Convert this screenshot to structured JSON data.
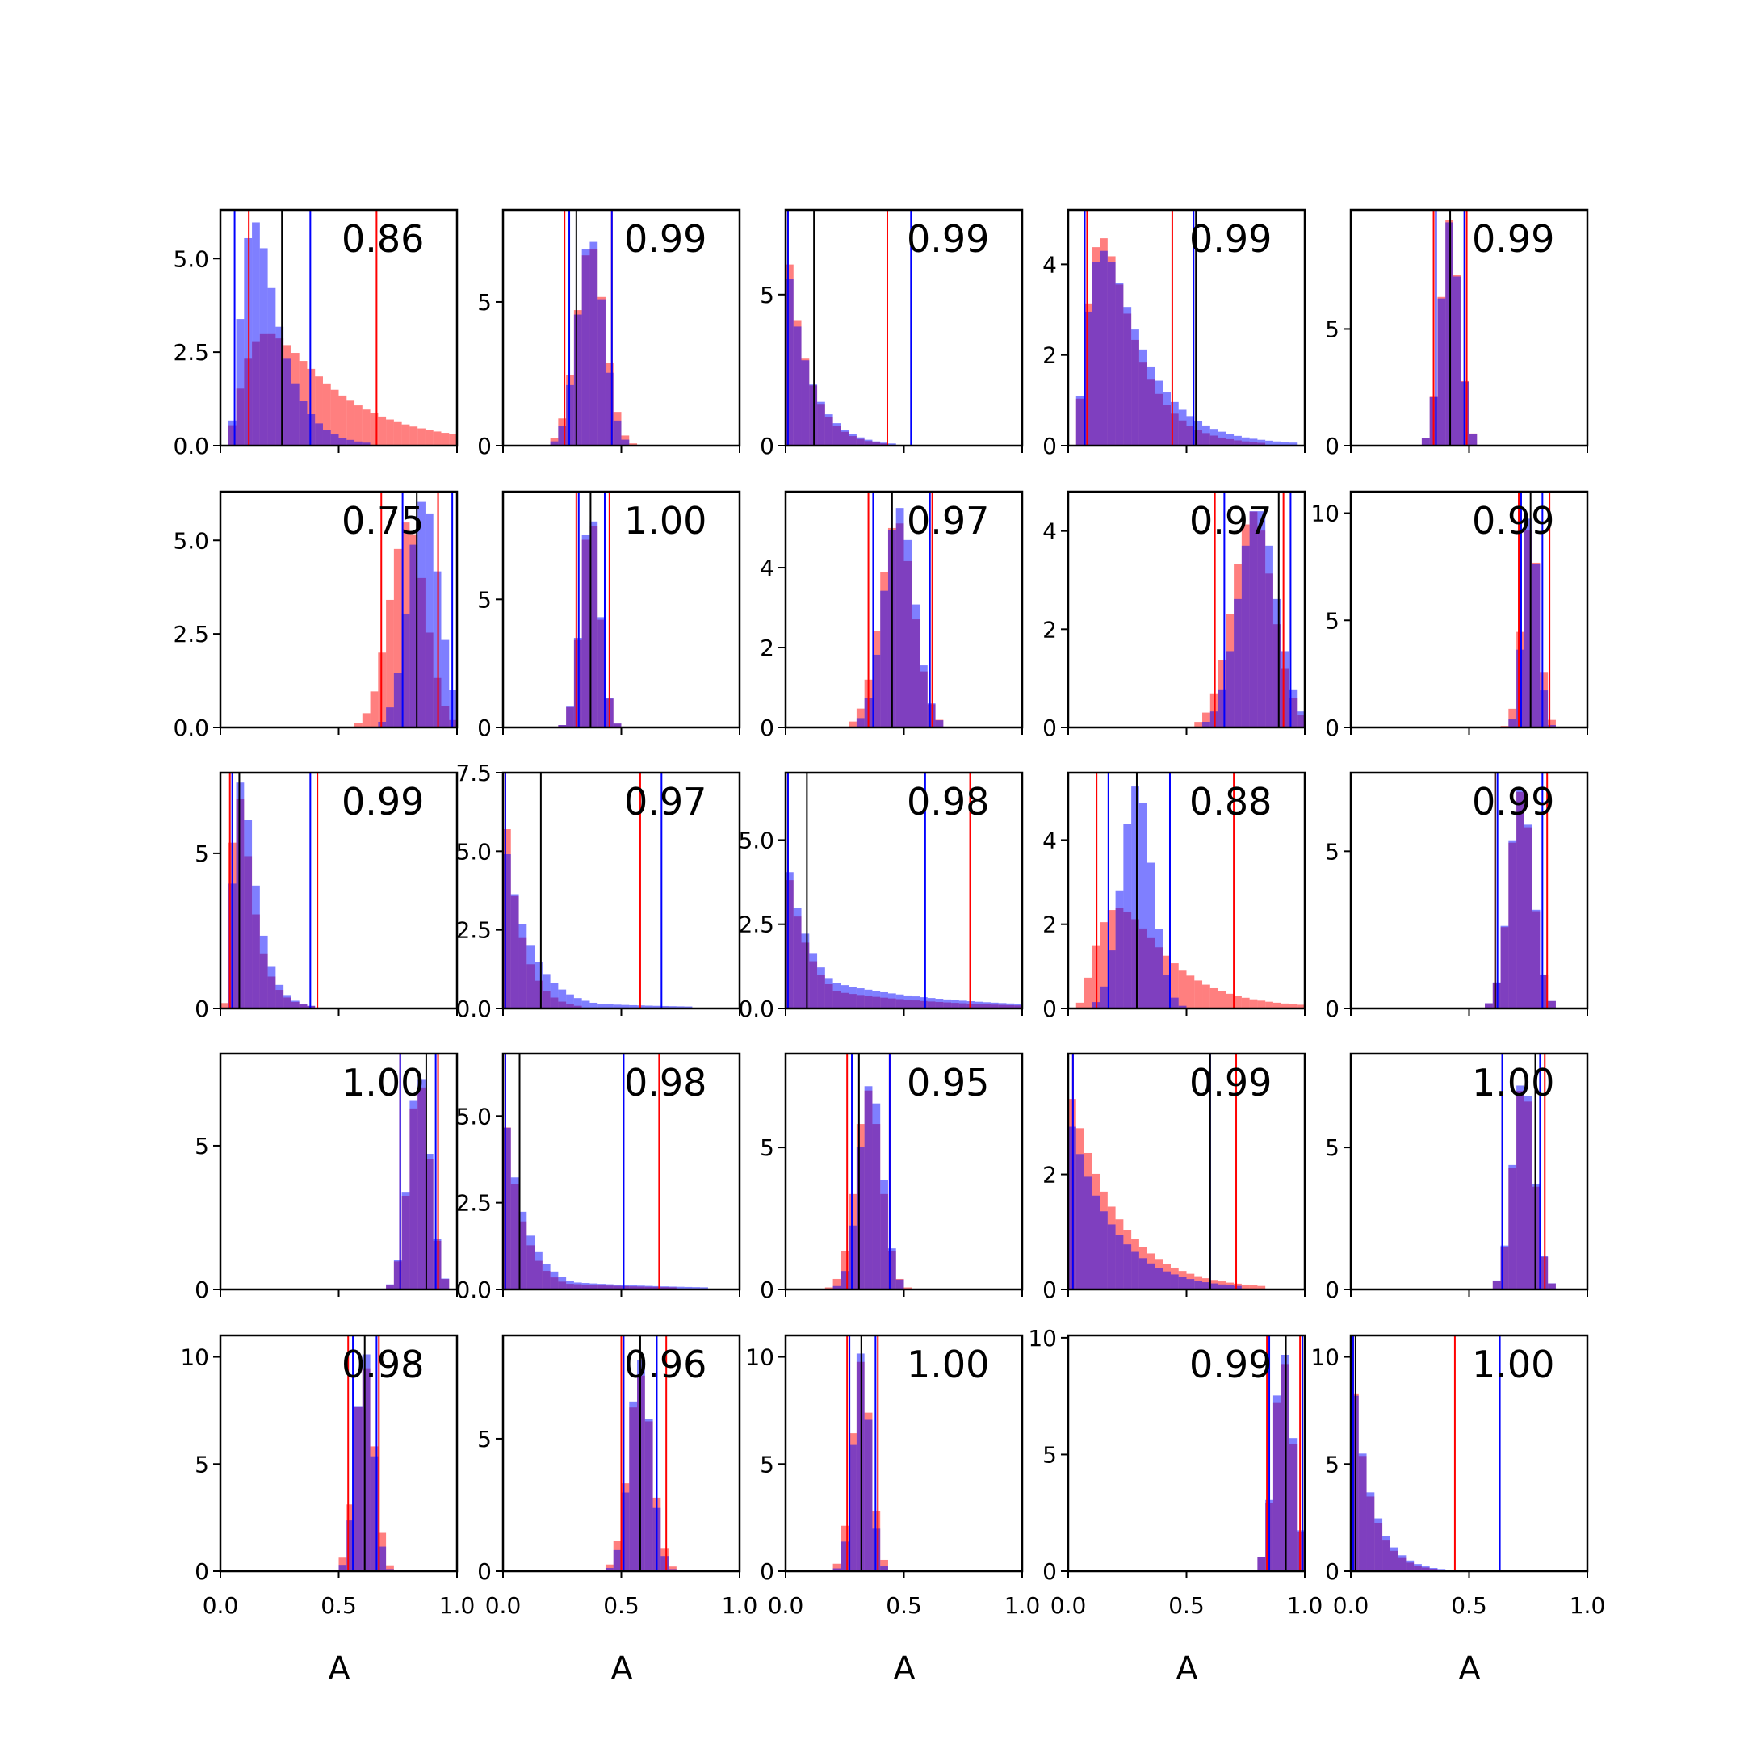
{
  "colors": {
    "red": "#ff0000",
    "blue": "#0000ff",
    "black": "#000000"
  },
  "figure": {
    "xlabel": "A",
    "x_ticks": [
      "0.0",
      "0.5",
      "1.0"
    ]
  },
  "chart_data": [
    {
      "type": "bar",
      "corr": "0.86",
      "ylim": [
        0,
        6.3
      ],
      "yticks": [
        0,
        2.5,
        5
      ],
      "ytick_labels": [
        "0.0",
        "2.5",
        "5.0"
      ],
      "red": {
        "lines": [
          0.12,
          0.66
        ],
        "dist": {
          "kind": "lognormal",
          "loc": 0,
          "mu": -1.05,
          "sigma": 0.75,
          "scale": 3.0
        }
      },
      "blue": {
        "lines": [
          0.06,
          0.38
        ],
        "dist": {
          "kind": "lognormal",
          "loc": 0,
          "mu": -1.7,
          "sigma": 0.5,
          "scale": 6.0
        }
      },
      "median": 0.26
    },
    {
      "type": "bar",
      "corr": "0.99",
      "ylim": [
        0,
        8.2
      ],
      "yticks": [
        0,
        5
      ],
      "ytick_labels": [
        "0",
        "5"
      ],
      "red": {
        "lines": [
          0.26,
          0.46
        ],
        "dist": {
          "kind": "normal",
          "mu": 0.37,
          "sd": 0.06,
          "scale": 7.0
        }
      },
      "blue": {
        "lines": [
          0.28,
          0.46
        ],
        "dist": {
          "kind": "normal",
          "mu": 0.37,
          "sd": 0.055,
          "scale": 7.3
        }
      },
      "median": 0.31
    },
    {
      "type": "bar",
      "corr": "0.99",
      "ylim": [
        0,
        7.8
      ],
      "yticks": [
        0,
        5
      ],
      "ytick_labels": [
        "0",
        "5"
      ],
      "red": {
        "lines": [
          0.01,
          0.43
        ],
        "dist": {
          "kind": "exp",
          "rate": 11,
          "scale": 7.2,
          "floor": 0.08
        }
      },
      "blue": {
        "lines": [
          0.01,
          0.53
        ],
        "dist": {
          "kind": "exp",
          "rate": 10,
          "scale": 6.5,
          "floor": 0.1
        }
      },
      "median": 0.12
    },
    {
      "type": "bar",
      "corr": "0.99",
      "ylim": [
        0,
        5.2
      ],
      "yticks": [
        0,
        2,
        4
      ],
      "ytick_labels": [
        "0",
        "2",
        "4"
      ],
      "red": {
        "lines": [
          0.08,
          0.44
        ],
        "dist": {
          "kind": "lognormal",
          "loc": 0,
          "mu": -1.6,
          "sigma": 0.6,
          "scale": 4.6
        }
      },
      "blue": {
        "lines": [
          0.07,
          0.53
        ],
        "dist": {
          "kind": "lognormal",
          "loc": 0,
          "mu": -1.5,
          "sigma": 0.65,
          "scale": 4.3
        }
      },
      "median": 0.54
    },
    {
      "type": "bar",
      "corr": "0.99",
      "ylim": [
        0,
        10.1
      ],
      "yticks": [
        0,
        5
      ],
      "ytick_labels": [
        "0",
        "5"
      ],
      "red": {
        "lines": [
          0.35,
          0.49
        ],
        "dist": {
          "kind": "normal",
          "mu": 0.42,
          "sd": 0.04,
          "scale": 9.7
        }
      },
      "blue": {
        "lines": [
          0.36,
          0.48
        ],
        "dist": {
          "kind": "normal",
          "mu": 0.42,
          "sd": 0.04,
          "scale": 9.6
        }
      },
      "median": 0.42
    },
    {
      "type": "bar",
      "corr": "0.75",
      "ylim": [
        0,
        6.3
      ],
      "yticks": [
        0,
        2.5,
        5
      ],
      "ytick_labels": [
        "0.0",
        "2.5",
        "5.0"
      ],
      "red": {
        "lines": [
          0.68,
          0.92
        ],
        "dist": {
          "kind": "normal",
          "mu": 0.79,
          "sd": 0.075,
          "scale": 5.5
        }
      },
      "blue": {
        "lines": [
          0.77,
          0.98
        ],
        "dist": {
          "kind": "normal",
          "mu": 0.86,
          "sd": 0.065,
          "scale": 6.1
        }
      },
      "median": 0.83
    },
    {
      "type": "bar",
      "corr": "1.00",
      "ylim": [
        0,
        9.2
      ],
      "yticks": [
        0,
        5
      ],
      "ytick_labels": [
        "0",
        "5"
      ],
      "red": {
        "lines": [
          0.31,
          0.45
        ],
        "dist": {
          "kind": "normal",
          "mu": 0.37,
          "sd": 0.04,
          "scale": 8.3
        }
      },
      "blue": {
        "lines": [
          0.32,
          0.43
        ],
        "dist": {
          "kind": "normal",
          "mu": 0.37,
          "sd": 0.04,
          "scale": 8.5
        }
      },
      "median": 0.37
    },
    {
      "type": "bar",
      "corr": "0.97",
      "ylim": [
        0,
        5.9
      ],
      "yticks": [
        0,
        2,
        4
      ],
      "ytick_labels": [
        "0",
        "2",
        "4"
      ],
      "red": {
        "lines": [
          0.35,
          0.62
        ],
        "dist": {
          "kind": "normal",
          "mu": 0.47,
          "sd": 0.07,
          "scale": 5.2
        }
      },
      "blue": {
        "lines": [
          0.37,
          0.61
        ],
        "dist": {
          "kind": "normal",
          "mu": 0.48,
          "sd": 0.065,
          "scale": 5.5
        }
      },
      "median": 0.45
    },
    {
      "type": "bar",
      "corr": "0.97",
      "ylim": [
        0,
        4.8
      ],
      "yticks": [
        0,
        2,
        4
      ],
      "ytick_labels": [
        "0",
        "2",
        "4"
      ],
      "red": {
        "lines": [
          0.62,
          0.91
        ],
        "dist": {
          "kind": "normal",
          "mu": 0.78,
          "sd": 0.085,
          "scale": 4.4
        }
      },
      "blue": {
        "lines": [
          0.66,
          0.94
        ],
        "dist": {
          "kind": "normal",
          "mu": 0.8,
          "sd": 0.08,
          "scale": 4.5
        }
      },
      "median": 0.89
    },
    {
      "type": "bar",
      "corr": "0.99",
      "ylim": [
        0,
        11
      ],
      "yticks": [
        0,
        5,
        10
      ],
      "ytick_labels": [
        "0",
        "5",
        "10"
      ],
      "red": {
        "lines": [
          0.71,
          0.84
        ],
        "dist": {
          "kind": "normal",
          "mu": 0.76,
          "sd": 0.035,
          "scale": 9.6
        }
      },
      "blue": {
        "lines": [
          0.72,
          0.81
        ],
        "dist": {
          "kind": "normal",
          "mu": 0.76,
          "sd": 0.03,
          "scale": 10.3
        }
      },
      "median": 0.76
    },
    {
      "type": "bar",
      "corr": "0.99",
      "ylim": [
        0,
        7.6
      ],
      "yticks": [
        0,
        5
      ],
      "ytick_labels": [
        "0",
        "5"
      ],
      "red": {
        "lines": [
          0.04,
          0.41
        ],
        "dist": {
          "kind": "lognormal",
          "loc": 0,
          "mu": -2.3,
          "sigma": 0.55,
          "scale": 6.9
        }
      },
      "blue": {
        "lines": [
          0.05,
          0.38
        ],
        "dist": {
          "kind": "lognormal",
          "loc": 0,
          "mu": -2.2,
          "sigma": 0.5,
          "scale": 7.3
        }
      },
      "median": 0.08
    },
    {
      "type": "bar",
      "corr": "0.97",
      "ylim": [
        0,
        7.5
      ],
      "yticks": [
        0,
        2.5,
        5,
        7.5
      ],
      "ytick_labels": [
        "0.0",
        "2.5",
        "5.0",
        "7.5"
      ],
      "red": {
        "lines": [
          0.01,
          0.58
        ],
        "dist": {
          "kind": "exp",
          "rate": 14,
          "scale": 7.2,
          "floor": 0.12
        }
      },
      "blue": {
        "lines": [
          0.01,
          0.67
        ],
        "dist": {
          "kind": "exp",
          "rate": 9,
          "scale": 5.7,
          "floor": 0.35
        }
      },
      "median": 0.16
    },
    {
      "type": "bar",
      "corr": "0.98",
      "ylim": [
        0,
        7
      ],
      "yticks": [
        0,
        2.5,
        5
      ],
      "ytick_labels": [
        "0.0",
        "2.5",
        "5.0"
      ],
      "red": {
        "lines": [
          0.01,
          0.78
        ],
        "dist": {
          "kind": "exp",
          "rate": 10,
          "scale": 4.5,
          "floor": 0.8
        }
      },
      "blue": {
        "lines": [
          0.01,
          0.59
        ],
        "dist": {
          "kind": "exp",
          "rate": 9,
          "scale": 4.7,
          "floor": 1.2
        }
      },
      "median": 0.09
    },
    {
      "type": "bar",
      "corr": "0.88",
      "ylim": [
        0,
        5.6
      ],
      "yticks": [
        0,
        2,
        4
      ],
      "ytick_labels": [
        "0",
        "2",
        "4"
      ],
      "red": {
        "lines": [
          0.12,
          0.7
        ],
        "dist": {
          "kind": "lognormal",
          "loc": 0,
          "mu": -1.2,
          "sigma": 0.6,
          "scale": 2.4
        }
      },
      "blue": {
        "lines": [
          0.17,
          0.43
        ],
        "dist": {
          "kind": "normal",
          "mu": 0.29,
          "sd": 0.065,
          "scale": 5.3
        }
      },
      "median": 0.29
    },
    {
      "type": "bar",
      "corr": "0.99",
      "ylim": [
        0,
        7.5
      ],
      "yticks": [
        0,
        5
      ],
      "ytick_labels": [
        "0",
        "5"
      ],
      "red": {
        "lines": [
          0.61,
          0.83
        ],
        "dist": {
          "kind": "normal",
          "mu": 0.72,
          "sd": 0.05,
          "scale": 6.9
        }
      },
      "blue": {
        "lines": [
          0.62,
          0.81
        ],
        "dist": {
          "kind": "normal",
          "mu": 0.72,
          "sd": 0.05,
          "scale": 7.0
        }
      },
      "median": 0.61
    },
    {
      "type": "bar",
      "corr": "1.00",
      "ylim": [
        0,
        8.2
      ],
      "yticks": [
        0,
        5
      ],
      "ytick_labels": [
        "0",
        "5"
      ],
      "red": {
        "lines": [
          0.76,
          0.92
        ],
        "dist": {
          "kind": "normal",
          "mu": 0.84,
          "sd": 0.045,
          "scale": 7.2
        }
      },
      "blue": {
        "lines": [
          0.76,
          0.91
        ],
        "dist": {
          "kind": "normal",
          "mu": 0.84,
          "sd": 0.045,
          "scale": 7.5
        }
      },
      "median": 0.87
    },
    {
      "type": "bar",
      "corr": "0.98",
      "ylim": [
        0,
        6.8
      ],
      "yticks": [
        0,
        2.5,
        5
      ],
      "ytick_labels": [
        "0.0",
        "2.5",
        "5.0"
      ],
      "red": {
        "lines": [
          0.01,
          0.66
        ],
        "dist": {
          "kind": "exp",
          "rate": 13,
          "scale": 5.8,
          "floor": 0.3
        }
      },
      "blue": {
        "lines": [
          0.01,
          0.51
        ],
        "dist": {
          "kind": "exp",
          "rate": 11,
          "scale": 5.6,
          "floor": 0.4
        }
      },
      "median": 0.07
    },
    {
      "type": "bar",
      "corr": "0.95",
      "ylim": [
        0,
        8.3
      ],
      "yticks": [
        0,
        5
      ],
      "ytick_labels": [
        "0",
        "5"
      ],
      "red": {
        "lines": [
          0.26,
          0.44
        ],
        "dist": {
          "kind": "normal",
          "mu": 0.35,
          "sd": 0.055,
          "scale": 7.0
        }
      },
      "blue": {
        "lines": [
          0.28,
          0.44
        ],
        "dist": {
          "kind": "normal",
          "mu": 0.36,
          "sd": 0.05,
          "scale": 7.3
        }
      },
      "median": 0.31
    },
    {
      "type": "bar",
      "corr": "0.99",
      "ylim": [
        0,
        4.1
      ],
      "yticks": [
        0,
        2
      ],
      "ytick_labels": [
        "0",
        "2"
      ],
      "red": {
        "lines": [
          0.02,
          0.71
        ],
        "dist": {
          "kind": "exp",
          "rate": 5,
          "scale": 3.6,
          "floor": 0.15
        }
      },
      "blue": {
        "lines": [
          0.02,
          0.6
        ],
        "dist": {
          "kind": "exp",
          "rate": 5.5,
          "scale": 3.1,
          "floor": 0.3
        }
      },
      "median": 0.6
    },
    {
      "type": "bar",
      "corr": "1.00",
      "ylim": [
        0,
        8.3
      ],
      "yticks": [
        0,
        5
      ],
      "ytick_labels": [
        "0",
        "5"
      ],
      "red": {
        "lines": [
          0.64,
          0.82
        ],
        "dist": {
          "kind": "normal",
          "mu": 0.73,
          "sd": 0.045,
          "scale": 7.3
        }
      },
      "blue": {
        "lines": [
          0.64,
          0.8
        ],
        "dist": {
          "kind": "normal",
          "mu": 0.73,
          "sd": 0.045,
          "scale": 7.5
        }
      },
      "median": 0.78
    },
    {
      "type": "bar",
      "corr": "0.98",
      "ylim": [
        0,
        11
      ],
      "yticks": [
        0,
        5,
        10
      ],
      "ytick_labels": [
        "0",
        "5",
        "10"
      ],
      "red": {
        "lines": [
          0.54,
          0.67
        ],
        "dist": {
          "kind": "normal",
          "mu": 0.61,
          "sd": 0.04,
          "scale": 9.6
        }
      },
      "blue": {
        "lines": [
          0.56,
          0.66
        ],
        "dist": {
          "kind": "normal",
          "mu": 0.61,
          "sd": 0.035,
          "scale": 10.3
        }
      },
      "median": 0.61
    },
    {
      "type": "bar",
      "corr": "0.96",
      "ylim": [
        0,
        8.9
      ],
      "yticks": [
        0,
        5
      ],
      "ytick_labels": [
        "0",
        "5"
      ],
      "red": {
        "lines": [
          0.5,
          0.69
        ],
        "dist": {
          "kind": "normal",
          "mu": 0.58,
          "sd": 0.05,
          "scale": 7.4
        }
      },
      "blue": {
        "lines": [
          0.51,
          0.65
        ],
        "dist": {
          "kind": "normal",
          "mu": 0.58,
          "sd": 0.045,
          "scale": 8.0
        }
      },
      "median": 0.58
    },
    {
      "type": "bar",
      "corr": "1.00",
      "ylim": [
        0,
        11
      ],
      "yticks": [
        0,
        5,
        10
      ],
      "ytick_labels": [
        "0",
        "5",
        "10"
      ],
      "red": {
        "lines": [
          0.26,
          0.39
        ],
        "dist": {
          "kind": "normal",
          "mu": 0.32,
          "sd": 0.04,
          "scale": 9.8
        }
      },
      "blue": {
        "lines": [
          0.27,
          0.38
        ],
        "dist": {
          "kind": "normal",
          "mu": 0.32,
          "sd": 0.035,
          "scale": 10.2
        }
      },
      "median": 0.32
    },
    {
      "type": "bar",
      "corr": "0.99",
      "ylim": [
        0,
        10.1
      ],
      "yticks": [
        0,
        5,
        10
      ],
      "ytick_labels": [
        "0",
        "5",
        "10"
      ],
      "red": {
        "lines": [
          0.84,
          0.98
        ],
        "dist": {
          "kind": "normal",
          "mu": 0.91,
          "sd": 0.04,
          "scale": 9.0
        }
      },
      "blue": {
        "lines": [
          0.85,
          0.99
        ],
        "dist": {
          "kind": "normal",
          "mu": 0.91,
          "sd": 0.04,
          "scale": 9.4
        }
      },
      "median": 0.92
    },
    {
      "type": "bar",
      "corr": "1.00",
      "ylim": [
        0,
        11
      ],
      "yticks": [
        0,
        5,
        10
      ],
      "ytick_labels": [
        "0",
        "5",
        "10"
      ],
      "red": {
        "lines": [
          0.01,
          0.44
        ],
        "dist": {
          "kind": "exp",
          "rate": 13,
          "scale": 10.3,
          "floor": 0.1
        }
      },
      "blue": {
        "lines": [
          0.01,
          0.63
        ],
        "dist": {
          "kind": "exp",
          "rate": 12,
          "scale": 10.0,
          "floor": 0.15
        }
      },
      "median": 0.02
    }
  ]
}
